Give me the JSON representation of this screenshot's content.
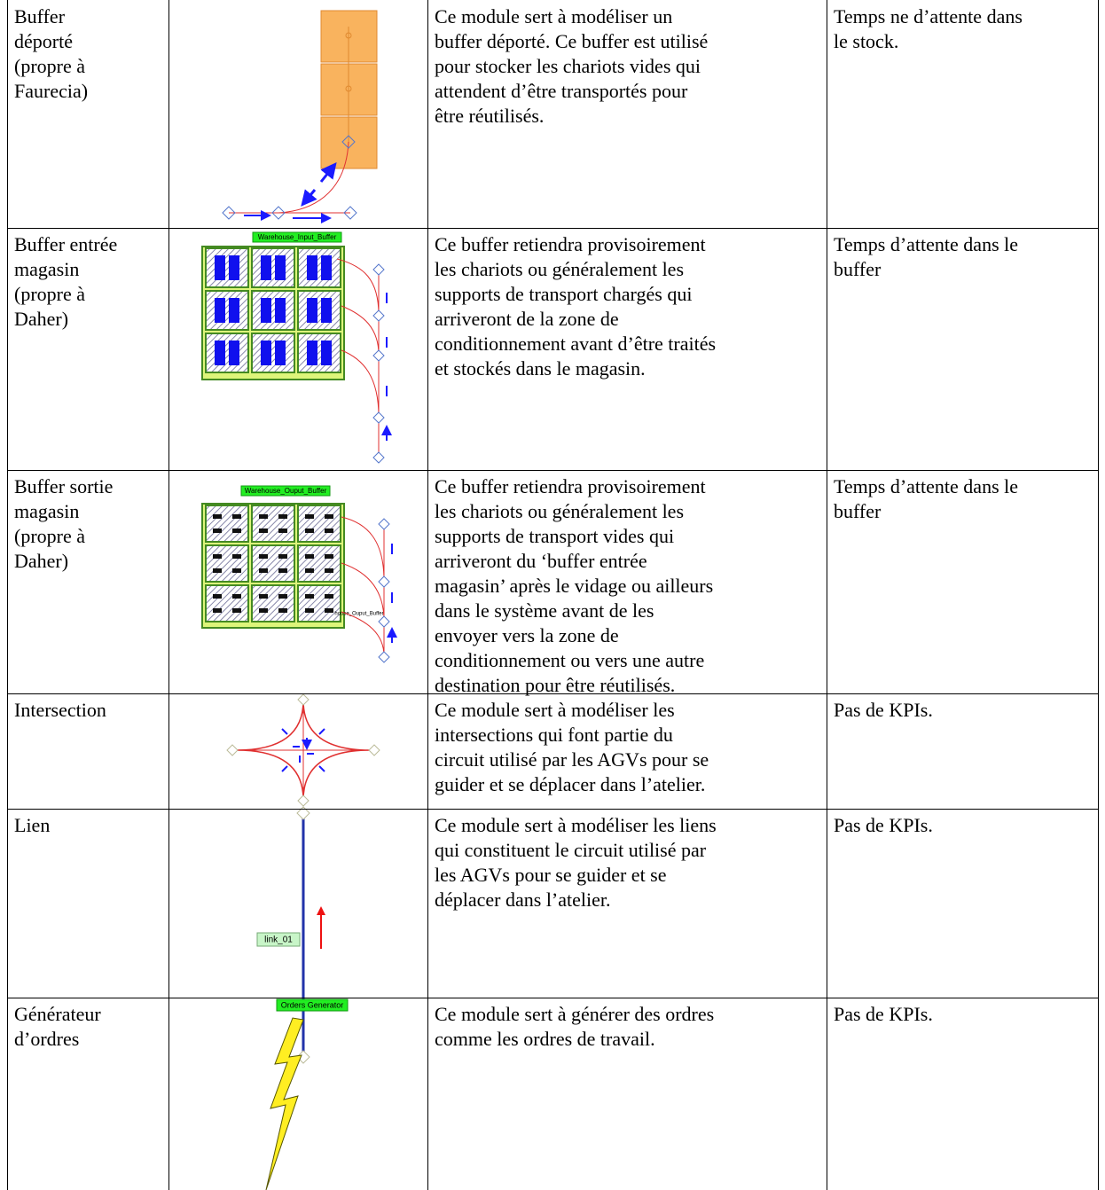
{
  "table": {
    "rows": [
      {
        "name": [
          "Buffer",
          "déporté",
          "(propre à",
          "Faurecia)"
        ],
        "description": [
          "Ce module sert à modéliser un",
          "buffer déporté. Ce buffer est utilisé",
          "pour stocker les chariots vides qui",
          "attendent d’être transportés pour",
          "être réutilisés."
        ],
        "kpi": [
          "Temps ne d’attente dans",
          "le stock."
        ]
      },
      {
        "name": [
          "Buffer entrée",
          "magasin",
          "(propre à",
          "Daher)"
        ],
        "image_label": "Warehouse_Input_Buffer",
        "description": [
          "Ce buffer retiendra provisoirement",
          "les chariots ou généralement les",
          "supports de transport chargés qui",
          "arriveront de la zone de",
          "conditionnement avant d’être traités",
          "et stockés dans le magasin."
        ],
        "kpi": [
          "Temps d’attente dans le",
          "buffer"
        ]
      },
      {
        "name": [
          "Buffer sortie",
          "magasin",
          "(propre à",
          "Daher)"
        ],
        "image_label": "Warehouse_Ouput_Buffer",
        "image_sublabel": "house_Ouput_Buffer",
        "description": [
          "Ce buffer retiendra provisoirement",
          "les chariots ou généralement les",
          "supports de transport vides qui",
          "arriveront du ‘buffer entrée",
          "magasin’ après le vidage ou ailleurs",
          "dans le système avant de les",
          "envoyer vers la zone de",
          "conditionnement ou vers une autre",
          "destination pour être réutilisés."
        ],
        "kpi": [
          "Temps d’attente dans le",
          "buffer"
        ]
      },
      {
        "name": [
          "Intersection"
        ],
        "description": [
          "Ce module sert à modéliser les",
          "intersections qui font partie du",
          "circuit utilisé par les AGVs pour se",
          "guider et se déplacer dans l’atelier."
        ],
        "kpi": [
          "Pas de KPIs."
        ]
      },
      {
        "name": [
          "Lien"
        ],
        "image_label": "link_01",
        "description": [
          "Ce module sert à modéliser les liens",
          "qui constituent le circuit utilisé par",
          "les AGVs pour se guider et se",
          "déplacer dans l’atelier."
        ],
        "kpi": [
          "Pas de KPIs."
        ]
      },
      {
        "name": [
          "Générateur",
          "d’ordres"
        ],
        "image_label": "Orders Generator",
        "description": [
          "Ce module sert à générer des ordres",
          "comme les ordres de travail."
        ],
        "kpi": [
          "Pas de KPIs."
        ]
      }
    ]
  }
}
